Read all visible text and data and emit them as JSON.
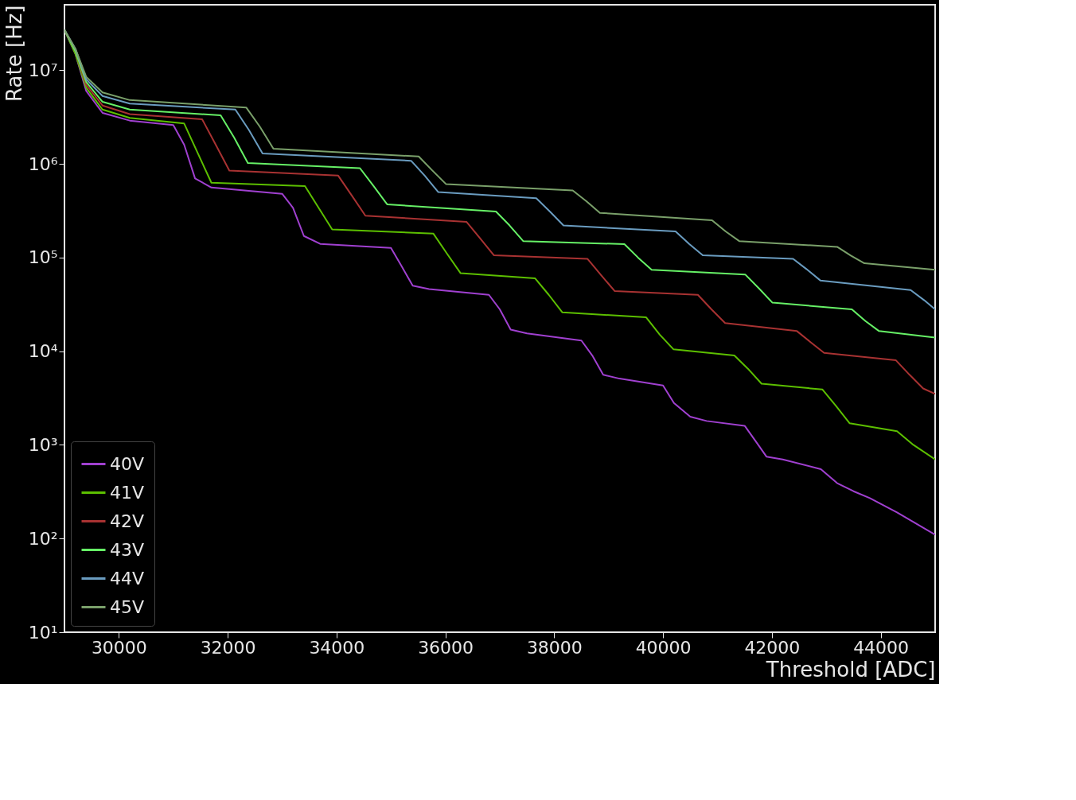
{
  "chart_data": {
    "type": "line",
    "xlabel": "Threshold [ADC]",
    "ylabel": "Rate [Hz]",
    "xlim": [
      29000,
      45000
    ],
    "ylim": [
      10,
      50000000
    ],
    "log": "y",
    "grid": false,
    "legend": "bottom left",
    "xticks": [
      30000,
      32000,
      34000,
      36000,
      38000,
      40000,
      42000,
      44000
    ],
    "yticks": [
      {
        "value": 10,
        "label": "10¹"
      },
      {
        "value": 100,
        "label": "10²"
      },
      {
        "value": 1000,
        "label": "10³"
      },
      {
        "value": 10000,
        "label": "10⁴"
      },
      {
        "value": 100000,
        "label": "10⁵"
      },
      {
        "value": 1000000,
        "label": "10⁶"
      },
      {
        "value": 10000000,
        "label": "10⁷"
      }
    ],
    "series": [
      {
        "name": "40V",
        "color": "#a040d0",
        "x": [
          29000,
          29200,
          29400,
          29700,
          30200,
          31000,
          31200,
          31400,
          31700,
          33000,
          33200,
          33400,
          33700,
          35000,
          35200,
          35400,
          35700,
          36800,
          37000,
          37200,
          37500,
          38500,
          38700,
          38900,
          39200,
          40000,
          40200,
          40500,
          40800,
          41500,
          41700,
          41900,
          42200,
          42900,
          43200,
          43500,
          43800,
          44300,
          44600,
          45000
        ],
        "values": [
          27000000.0,
          15000000.0,
          6000000.0,
          3500000.0,
          2900000.0,
          2600000.0,
          1600000.0,
          700000.0,
          560000.0,
          480000.0,
          340000.0,
          170000.0,
          140000.0,
          127000.0,
          80000.0,
          50000.0,
          46000.0,
          40000.0,
          28000.0,
          17000.0,
          15500.0,
          13000.0,
          9000.0,
          5600.0,
          5100.0,
          4300.0,
          2800.0,
          2000.0,
          1800.0,
          1600.0,
          1100.0,
          750.0,
          700.0,
          550.0,
          390.0,
          320.0,
          270.0,
          190.0,
          150.0,
          110.0
        ]
      },
      {
        "name": "41V",
        "color": "#5cbf00",
        "x": [
          29000,
          29200,
          29400,
          29700,
          30200,
          31200,
          31450,
          31700,
          33420,
          33670,
          33920,
          35780,
          36030,
          36280,
          37650,
          37900,
          38150,
          39690,
          39940,
          40190,
          41310,
          41560,
          41810,
          42930,
          43180,
          43430,
          44300,
          44600,
          45000
        ],
        "values": [
          27000000.0,
          15000000.0,
          6500000.0,
          3800000.0,
          3100000.0,
          2700000.0,
          1300000.0,
          630000.0,
          580000.0,
          340000.0,
          200000.0,
          180000.0,
          110000.0,
          68000.0,
          60000.0,
          40000.0,
          26000.0,
          23000.0,
          15000.0,
          10500.0,
          9000.0,
          6500.0,
          4500.0,
          3900.0,
          2600.0,
          1700.0,
          1400.0,
          1000.0,
          700.0
        ]
      },
      {
        "name": "42V",
        "color": "#a83232",
        "x": [
          29000,
          29200,
          29400,
          29700,
          30200,
          31530,
          31780,
          32030,
          34030,
          34280,
          34530,
          36390,
          36640,
          36890,
          38610,
          38860,
          39110,
          40640,
          40890,
          41140,
          42460,
          42710,
          42960,
          44280,
          44530,
          44780,
          45000
        ],
        "values": [
          27000000.0,
          16000000.0,
          7000000.0,
          4200000.0,
          3400000.0,
          3000000.0,
          1600000.0,
          850000.0,
          750000.0,
          460000.0,
          280000.0,
          240000.0,
          160000.0,
          106000.0,
          97000.0,
          65000.0,
          44000.0,
          40000.0,
          28000.0,
          20000.0,
          16400.0,
          12500.0,
          9600.0,
          8000.0,
          5600.0,
          4000.0,
          3500.0
        ]
      },
      {
        "name": "43V",
        "color": "#66f066",
        "x": [
          29000,
          29200,
          29400,
          29700,
          30200,
          31870,
          32120,
          32370,
          34430,
          34680,
          34930,
          36930,
          37180,
          37430,
          39290,
          39540,
          39790,
          41510,
          41760,
          42010,
          43470,
          43720,
          43970,
          45000
        ],
        "values": [
          27000000.0,
          16000000.0,
          7500000.0,
          4600000.0,
          3800000.0,
          3300000.0,
          1900000.0,
          1020000.0,
          900000.0,
          580000.0,
          370000.0,
          310000.0,
          220000.0,
          150000.0,
          139000.0,
          100000.0,
          74000.0,
          66000.0,
          47000.0,
          33000.0,
          28000.0,
          21000.0,
          16400.0,
          14000.0
        ]
      },
      {
        "name": "44V",
        "color": "#6a9cc0",
        "x": [
          29000,
          29200,
          29400,
          29700,
          30200,
          32140,
          32390,
          32640,
          35370,
          35620,
          35870,
          37670,
          37920,
          38170,
          40230,
          40480,
          40730,
          42390,
          42640,
          42890,
          44550,
          44800,
          45000
        ],
        "values": [
          27000000.0,
          17000000.0,
          8000000.0,
          5300000.0,
          4400000.0,
          3800000.0,
          2300000.0,
          1290000.0,
          1080000.0,
          750000.0,
          500000.0,
          430000.0,
          310000.0,
          220000.0,
          190000.0,
          140000.0,
          106000.0,
          97000.0,
          75000.0,
          57000.0,
          45000.0,
          35000.0,
          28000.0
        ]
      },
      {
        "name": "45V",
        "color": "#7aa06a",
        "x": [
          29000,
          29200,
          29400,
          29700,
          30200,
          32340,
          32590,
          32840,
          35510,
          35760,
          36010,
          38340,
          38590,
          38840,
          40900,
          41150,
          41400,
          43200,
          43450,
          43700,
          45000
        ],
        "values": [
          27000000.0,
          17000000.0,
          8500000.0,
          5800000.0,
          4800000.0,
          4000000.0,
          2500000.0,
          1450000.0,
          1200000.0,
          850000.0,
          610000.0,
          520000.0,
          400000.0,
          300000.0,
          250000.0,
          190000.0,
          150000.0,
          130000.0,
          105000.0,
          87000.0,
          74000.0
        ]
      }
    ]
  }
}
